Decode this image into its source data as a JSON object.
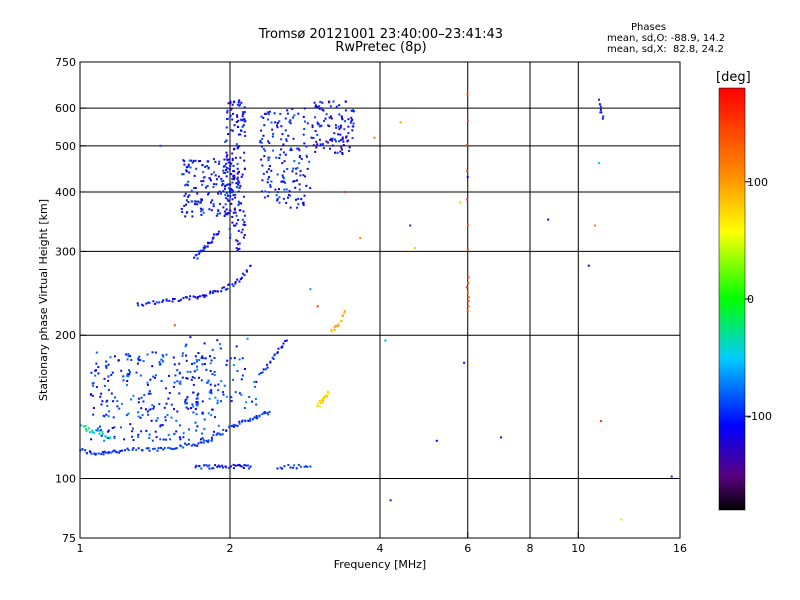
{
  "header": {
    "title_line1": "Tromsø 20121001 23:40:00–23:41:43",
    "title_line2": "RwPretec (8p)"
  },
  "phases": {
    "label": "Phases",
    "line_o": "mean, sd,O: -88.9, 14.2",
    "line_x": "mean, sd,X:  82.8, 24.2"
  },
  "colorbar": {
    "title": "[deg]",
    "ticks": [
      {
        "value": 100,
        "label": "100"
      },
      {
        "value": 0,
        "label": "0"
      },
      {
        "value": -100,
        "label": "-100"
      }
    ],
    "range": [
      -180,
      180
    ]
  },
  "chart_data": {
    "type": "scatter",
    "xlabel": "Frequency [MHz]",
    "ylabel": "Stationary phase Virtual Height [km]",
    "xscale": "log",
    "yscale": "log",
    "xlim": [
      1,
      16
    ],
    "ylim": [
      75,
      750
    ],
    "xticks": [
      1,
      2,
      4,
      6,
      8,
      10,
      16
    ],
    "yticks": [
      75,
      100,
      200,
      300,
      400,
      500,
      600,
      750
    ],
    "xgrid": [
      2,
      4,
      6,
      8,
      10
    ],
    "ygrid": [
      100,
      200,
      300,
      400,
      500,
      600
    ],
    "color_variable": "phase [deg]",
    "traces": [
      {
        "x": [
          1.0,
          1.05,
          1.1,
          1.15,
          1.2,
          1.3,
          1.4,
          1.5,
          1.6,
          1.7,
          1.8,
          1.9,
          2.0,
          2.1,
          2.2,
          2.3,
          2.4
        ],
        "y": [
          115,
          113,
          113,
          114,
          114,
          115,
          115,
          116,
          117,
          118,
          120,
          124,
          128,
          131,
          133,
          136,
          138
        ],
        "phase": -95
      },
      {
        "x": [
          1.0,
          1.05,
          1.1,
          1.15
        ],
        "y": [
          130,
          126,
          125,
          122
        ],
        "phase": -30
      },
      {
        "x": [
          1.3,
          1.4,
          1.5,
          1.6,
          1.7,
          1.8,
          1.9,
          2.0,
          2.1,
          2.2
        ],
        "y": [
          232,
          234,
          236,
          238,
          240,
          244,
          248,
          254,
          262,
          280
        ],
        "phase": -105
      },
      {
        "x": [
          1.7,
          1.75,
          1.8,
          1.85,
          1.9
        ],
        "y": [
          290,
          300,
          310,
          320,
          330
        ],
        "phase": -105
      },
      {
        "x": [
          1.7,
          1.8,
          1.9,
          2.0,
          2.1,
          2.2
        ],
        "y": [
          106,
          106,
          106,
          106,
          106,
          106
        ],
        "phase": -100
      },
      {
        "x": [
          2.5,
          2.7,
          2.9
        ],
        "y": [
          106,
          106,
          106
        ],
        "phase": -90
      },
      {
        "x": [
          2.3,
          2.4,
          2.5,
          2.6
        ],
        "y": [
          165,
          175,
          185,
          195
        ],
        "phase": -100
      },
      {
        "x": [
          3.0,
          3.05,
          3.1,
          3.15
        ],
        "y": [
          142,
          145,
          148,
          152
        ],
        "phase": 75
      },
      {
        "x": [
          3.2,
          3.3,
          3.4
        ],
        "y": [
          205,
          210,
          225
        ],
        "phase": 90
      },
      {
        "x": [
          6.0,
          6.0,
          6.0
        ],
        "y": [
          640,
          265,
          225
        ],
        "phase": 140
      },
      {
        "x": [
          11.0,
          11.2
        ],
        "y": [
          620,
          570
        ],
        "phase": -100
      }
    ],
    "clouds": [
      {
        "xr": [
          1.05,
          1.9
        ],
        "yr": [
          120,
          185
        ],
        "n": 280,
        "phase": -95
      },
      {
        "xr": [
          1.6,
          2.1
        ],
        "yr": [
          355,
          470
        ],
        "n": 180,
        "phase": -105
      },
      {
        "xr": [
          1.95,
          2.15
        ],
        "yr": [
          300,
          630
        ],
        "n": 140,
        "phase": -110
      },
      {
        "xr": [
          2.3,
          2.9
        ],
        "yr": [
          370,
          600
        ],
        "n": 160,
        "phase": -105
      },
      {
        "xr": [
          2.9,
          3.55
        ],
        "yr": [
          480,
          620
        ],
        "n": 110,
        "phase": -110
      },
      {
        "xr": [
          1.6,
          2.3
        ],
        "yr": [
          140,
          200
        ],
        "n": 70,
        "phase": -90
      }
    ],
    "sparse": [
      {
        "x": 4.2,
        "y": 90,
        "phase": -100
      },
      {
        "x": 4.1,
        "y": 195,
        "phase": -60
      },
      {
        "x": 4.6,
        "y": 340,
        "phase": -95
      },
      {
        "x": 4.7,
        "y": 305,
        "phase": 80
      },
      {
        "x": 5.2,
        "y": 120,
        "phase": -110
      },
      {
        "x": 5.8,
        "y": 380,
        "phase": 30
      },
      {
        "x": 6.0,
        "y": 430,
        "phase": -120
      },
      {
        "x": 5.9,
        "y": 175,
        "phase": -100
      },
      {
        "x": 8.7,
        "y": 350,
        "phase": -120
      },
      {
        "x": 10.5,
        "y": 280,
        "phase": -110
      },
      {
        "x": 10.8,
        "y": 340,
        "phase": 120
      },
      {
        "x": 11.0,
        "y": 460,
        "phase": -40
      },
      {
        "x": 11.1,
        "y": 132,
        "phase": 160
      },
      {
        "x": 12.2,
        "y": 82,
        "phase": 40
      },
      {
        "x": 15.4,
        "y": 101,
        "phase": -100
      },
      {
        "x": 7.0,
        "y": 122,
        "phase": -120
      },
      {
        "x": 3.65,
        "y": 320,
        "phase": 110
      },
      {
        "x": 3.4,
        "y": 400,
        "phase": 160
      },
      {
        "x": 2.9,
        "y": 250,
        "phase": -60
      },
      {
        "x": 3.0,
        "y": 230,
        "phase": 150
      },
      {
        "x": 3.9,
        "y": 520,
        "phase": 120
      },
      {
        "x": 4.4,
        "y": 560,
        "phase": 100
      },
      {
        "x": 1.45,
        "y": 500,
        "phase": -90
      },
      {
        "x": 1.55,
        "y": 210,
        "phase": 150
      }
    ]
  }
}
